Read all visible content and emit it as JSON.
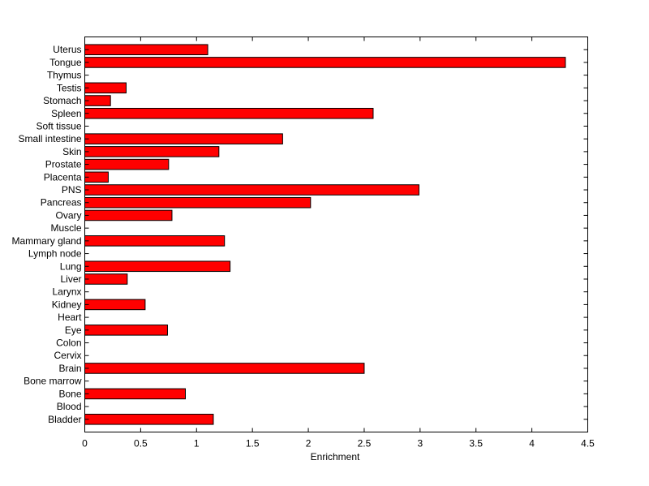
{
  "chart_data": {
    "type": "bar",
    "orientation": "horizontal",
    "title": "",
    "xlabel": "Enrichment",
    "ylabel": "",
    "xlim": [
      0,
      4.5
    ],
    "x_ticks": [
      0,
      0.5,
      1,
      1.5,
      2,
      2.5,
      3,
      3.5,
      4,
      4.5
    ],
    "x_tick_labels": [
      "0",
      "0.5",
      "1",
      "1.5",
      "2",
      "2.5",
      "3",
      "3.5",
      "4",
      "4.5"
    ],
    "grid": false,
    "legend": "none",
    "bar_color": "#ff0000",
    "edge_color": "#000000",
    "categories": [
      "Bladder",
      "Blood",
      "Bone",
      "Bone marrow",
      "Brain",
      "Cervix",
      "Colon",
      "Eye",
      "Heart",
      "Kidney",
      "Larynx",
      "Liver",
      "Lung",
      "Lymph node",
      "Mammary gland",
      "Muscle",
      "Ovary",
      "Pancreas",
      "PNS",
      "Placenta",
      "Prostate",
      "Skin",
      "Small intestine",
      "Soft tissue",
      "Spleen",
      "Stomach",
      "Testis",
      "Thymus",
      "Tongue",
      "Uterus"
    ],
    "values": [
      1.15,
      0,
      0.9,
      0,
      2.5,
      0,
      0,
      0.74,
      0,
      0.54,
      0,
      0.38,
      1.3,
      0,
      1.25,
      0,
      0.78,
      2.02,
      2.99,
      0.21,
      0.75,
      1.2,
      1.77,
      0,
      2.58,
      0.23,
      0.37,
      0,
      4.3,
      1.1
    ]
  }
}
